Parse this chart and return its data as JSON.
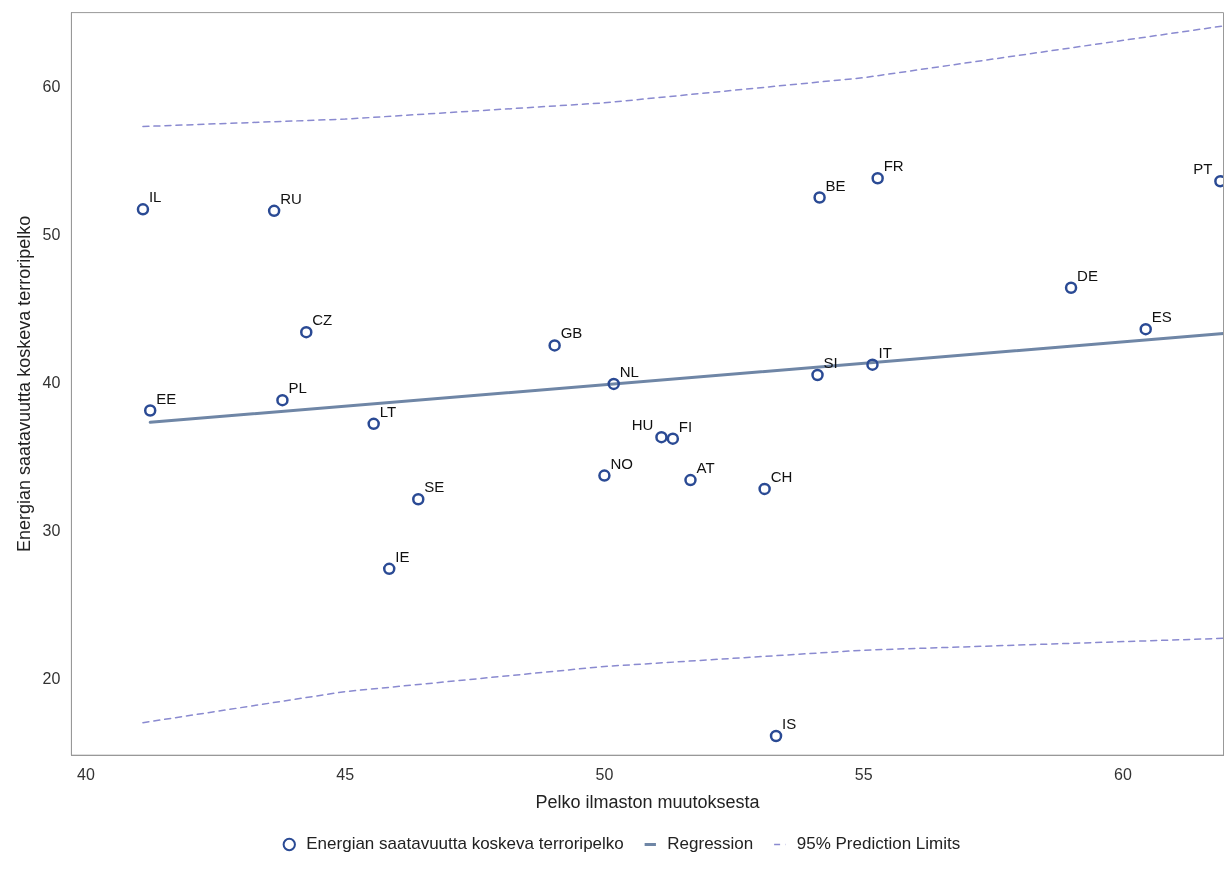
{
  "chart_data": {
    "type": "scatter",
    "xlabel": "Pelko ilmaston muutoksesta",
    "ylabel": "Energian saatavuutta koskeva terroripelko",
    "xlim": [
      39.72,
      61.94
    ],
    "ylim": [
      14.9,
      65.1
    ],
    "xticks": [
      40,
      45,
      50,
      55,
      60
    ],
    "yticks": [
      20,
      30,
      40,
      50,
      60
    ],
    "grid": false,
    "legend": "bottom",
    "series": [
      {
        "name": "Energian saatavuutta koskeva terroripelko",
        "marker": "circle",
        "color": "#2a4a94",
        "x": [
          41.1,
          43.63,
          44.25,
          41.24,
          43.79,
          45.55,
          46.41,
          45.85,
          49.04,
          50.18,
          50.0,
          51.1,
          51.32,
          51.66,
          53.09,
          54.11,
          55.17,
          54.15,
          55.27,
          53.31,
          59.0,
          60.44,
          61.88
        ],
        "values": [
          51.8,
          51.7,
          43.5,
          38.2,
          38.9,
          37.3,
          32.2,
          27.5,
          42.6,
          40.0,
          33.8,
          36.4,
          36.3,
          33.5,
          32.9,
          40.6,
          41.3,
          52.6,
          53.9,
          16.2,
          46.5,
          43.7,
          53.7
        ]
      },
      {
        "name": "Regression",
        "type": "line",
        "color": "#6f86a6",
        "line_style": "solid",
        "x": [
          41.24,
          61.94
        ],
        "values": [
          37.4,
          43.4
        ]
      },
      {
        "name": "95% Prediction Limits",
        "type": "line",
        "color": "#8a8ad0",
        "line_style": "dashed",
        "x": [
          41.1,
          45,
          50,
          55,
          61.94
        ],
        "values": [
          57.4,
          57.9,
          59.0,
          60.7,
          64.2
        ]
      },
      {
        "type": "line",
        "color": "#8a8ad0",
        "line_style": "dashed",
        "x": [
          41.1,
          45,
          50,
          55,
          61.94
        ],
        "values": [
          17.1,
          19.2,
          20.9,
          22.0,
          22.8
        ]
      }
    ],
    "annotations": [
      {
        "text": "IL",
        "x": 41.1,
        "y": 51.8
      },
      {
        "text": "RU",
        "x": 43.63,
        "y": 51.7
      },
      {
        "text": "CZ",
        "x": 44.25,
        "y": 43.5
      },
      {
        "text": "EE",
        "x": 41.24,
        "y": 38.2
      },
      {
        "text": "PL",
        "x": 43.79,
        "y": 38.9
      },
      {
        "text": "LT",
        "x": 45.55,
        "y": 37.3
      },
      {
        "text": "SE",
        "x": 46.41,
        "y": 32.2
      },
      {
        "text": "IE",
        "x": 45.85,
        "y": 27.5
      },
      {
        "text": "GB",
        "x": 49.04,
        "y": 42.6
      },
      {
        "text": "NL",
        "x": 50.18,
        "y": 40.0
      },
      {
        "text": "NO",
        "x": 50.0,
        "y": 33.8
      },
      {
        "text": "HU",
        "x": 51.1,
        "y": 36.4
      },
      {
        "text": "FI",
        "x": 51.32,
        "y": 36.3
      },
      {
        "text": "AT",
        "x": 51.66,
        "y": 33.5
      },
      {
        "text": "CH",
        "x": 53.09,
        "y": 32.9
      },
      {
        "text": "SI",
        "x": 54.11,
        "y": 40.6
      },
      {
        "text": "IT",
        "x": 55.17,
        "y": 41.3
      },
      {
        "text": "BE",
        "x": 54.15,
        "y": 52.6
      },
      {
        "text": "FR",
        "x": 55.27,
        "y": 53.9
      },
      {
        "text": "IS",
        "x": 53.31,
        "y": 16.2
      },
      {
        "text": "DE",
        "x": 59.0,
        "y": 46.5
      },
      {
        "text": "ES",
        "x": 60.44,
        "y": 43.7
      },
      {
        "text": "PT",
        "x": 61.88,
        "y": 53.7
      }
    ]
  }
}
